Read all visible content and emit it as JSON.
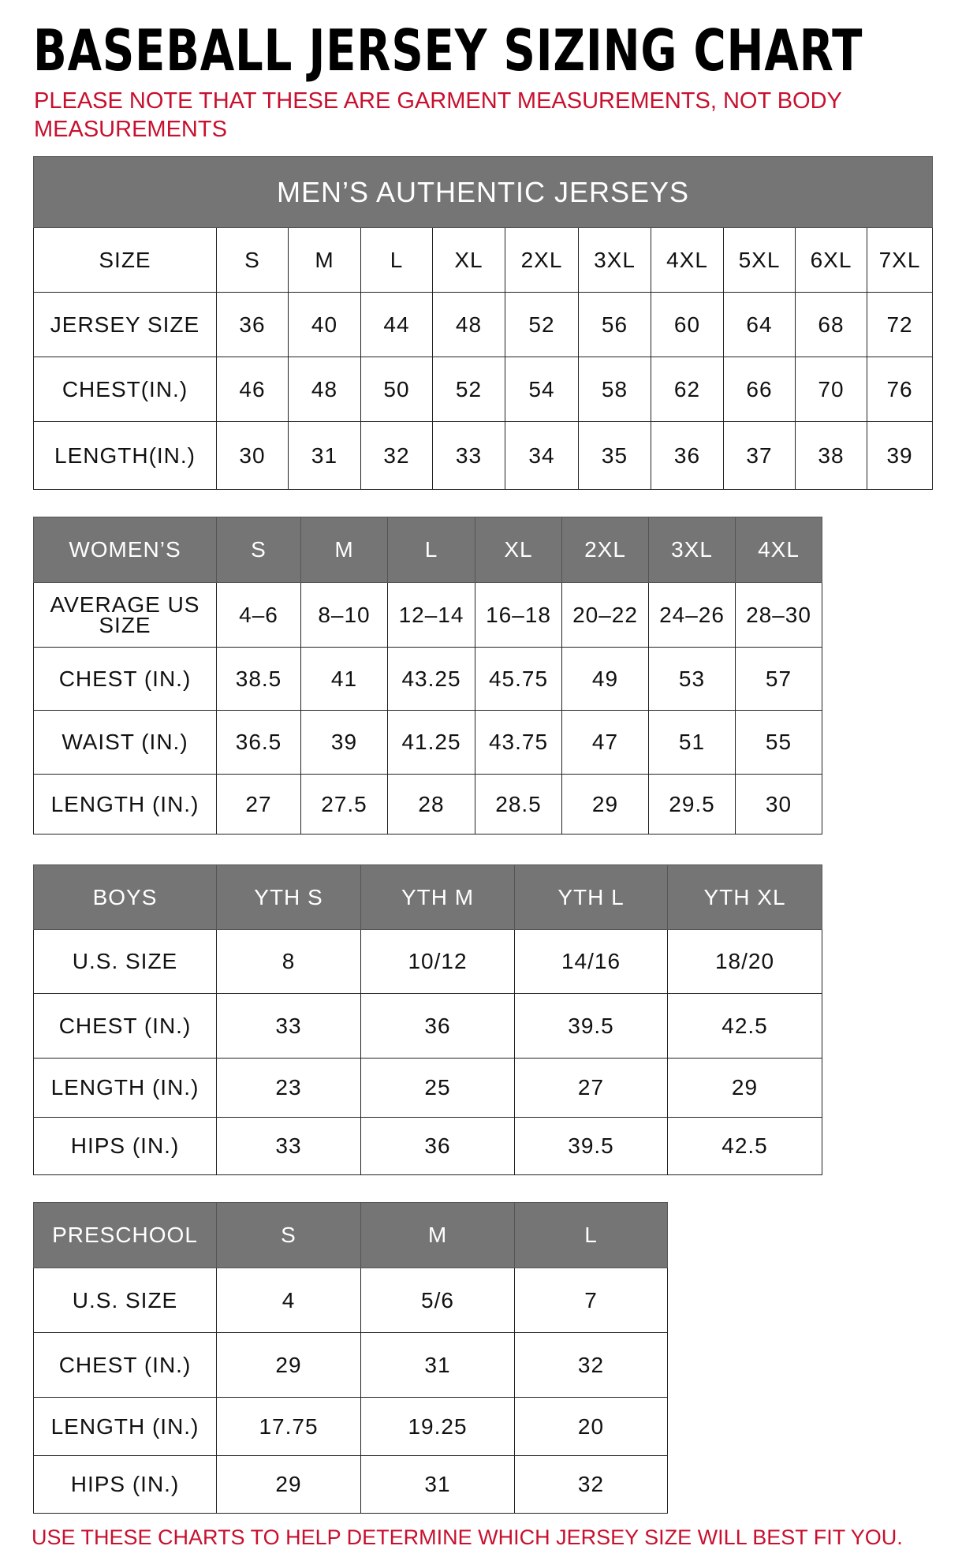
{
  "title": "BASEBALL JERSEY SIZING CHART",
  "note": "PLEASE NOTE THAT THESE ARE GARMENT MEASUREMENTS, NOT BODY MEASUREMENTS",
  "footer": "USE THESE CHARTS TO HELP DETERMINE WHICH JERSEY SIZE WILL BEST FIT YOU.",
  "colors": {
    "header_bg": "#757575",
    "note_red": "#c8102e"
  },
  "tables": [
    {
      "id": "mens",
      "caption": "MEN’S AUTHENTIC JERSEYS",
      "header": [
        "SIZE",
        "S",
        "M",
        "L",
        "XL",
        "2XL",
        "3XL",
        "4XL",
        "5XL",
        "6XL",
        "7XL"
      ],
      "header_gray": false,
      "rows": [
        [
          "JERSEY SIZE",
          "36",
          "40",
          "44",
          "48",
          "52",
          "56",
          "60",
          "64",
          "68",
          "72"
        ],
        [
          "CHEST(IN.)",
          "46",
          "48",
          "50",
          "52",
          "54",
          "58",
          "62",
          "66",
          "70",
          "76"
        ],
        [
          "LENGTH(IN.)",
          "30",
          "31",
          "32",
          "33",
          "34",
          "35",
          "36",
          "37",
          "38",
          "39"
        ]
      ]
    },
    {
      "id": "womens",
      "header": [
        "WOMEN’S",
        "S",
        "M",
        "L",
        "XL",
        "2XL",
        "3XL",
        "4XL"
      ],
      "header_gray": true,
      "rows": [
        [
          "AVERAGE US SIZE",
          "4–6",
          "8–10",
          "12–14",
          "16–18",
          "20–22",
          "24–26",
          "28–30"
        ],
        [
          "CHEST (IN.)",
          "38.5",
          "41",
          "43.25",
          "45.75",
          "49",
          "53",
          "57"
        ],
        [
          "WAIST (IN.)",
          "36.5",
          "39",
          "41.25",
          "43.75",
          "47",
          "51",
          "55"
        ],
        [
          "LENGTH (IN.)",
          "27",
          "27.5",
          "28",
          "28.5",
          "29",
          "29.5",
          "30"
        ]
      ]
    },
    {
      "id": "boys",
      "header": [
        "BOYS",
        "YTH S",
        "YTH M",
        "YTH L",
        "YTH XL"
      ],
      "header_gray": true,
      "rows": [
        [
          "U.S. SIZE",
          "8",
          "10/12",
          "14/16",
          "18/20"
        ],
        [
          "CHEST (IN.)",
          "33",
          "36",
          "39.5",
          "42.5"
        ],
        [
          "LENGTH (IN.)",
          "23",
          "25",
          "27",
          "29"
        ],
        [
          "HIPS (IN.)",
          "33",
          "36",
          "39.5",
          "42.5"
        ]
      ]
    },
    {
      "id": "preschool",
      "header": [
        "PRESCHOOL",
        "S",
        "M",
        "L"
      ],
      "header_gray": true,
      "rows": [
        [
          "U.S. SIZE",
          "4",
          "5/6",
          "7"
        ],
        [
          "CHEST (IN.)",
          "29",
          "31",
          "32"
        ],
        [
          "LENGTH (IN.)",
          "17.75",
          "19.25",
          "20"
        ],
        [
          "HIPS (IN.)",
          "29",
          "31",
          "32"
        ]
      ]
    }
  ]
}
